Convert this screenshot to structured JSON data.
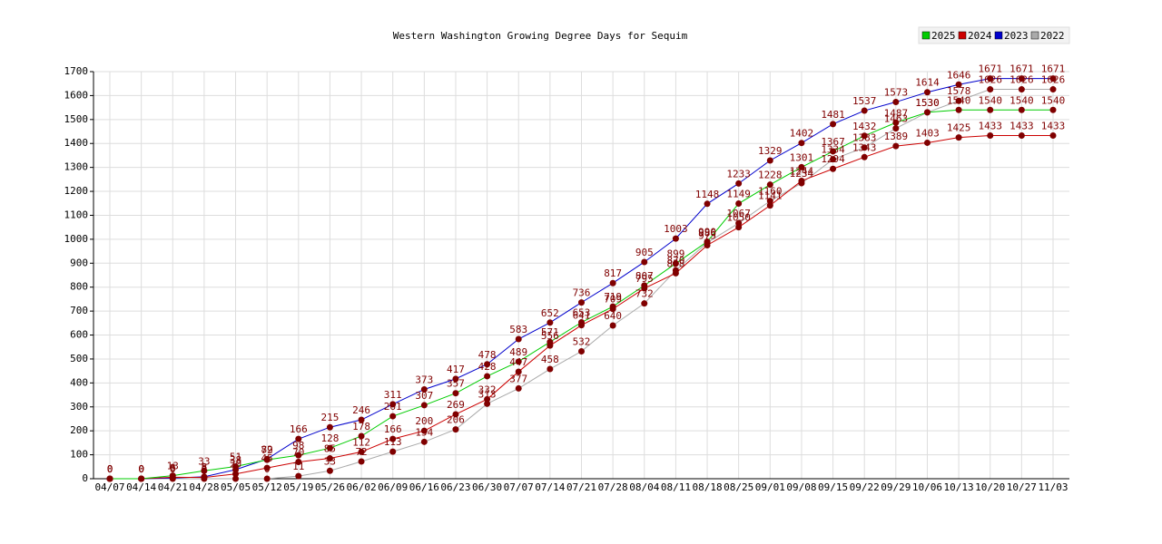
{
  "chart_data": {
    "type": "line",
    "title": "Western Washington Growing Degree Days for Sequim",
    "categories": [
      "04/07",
      "04/14",
      "04/21",
      "04/28",
      "05/05",
      "05/12",
      "05/19",
      "05/26",
      "06/02",
      "06/09",
      "06/16",
      "06/23",
      "06/30",
      "07/07",
      "07/14",
      "07/21",
      "07/28",
      "08/04",
      "08/11",
      "08/18",
      "08/25",
      "09/01",
      "09/08",
      "09/15",
      "09/22",
      "09/29",
      "10/06",
      "10/13",
      "10/20",
      "10/27",
      "11/03"
    ],
    "series": [
      {
        "name": "2025",
        "color": "#00cc00",
        "values": [
          0,
          0,
          13,
          33,
          51,
          79,
          98,
          128,
          178,
          261,
          307,
          357,
          428,
          489,
          571,
          653,
          719,
          807,
          899,
          990,
          1149,
          1228,
          1301,
          1367,
          1432,
          1487,
          1530,
          1540,
          1540,
          1540,
          1540
        ]
      },
      {
        "name": "2024",
        "color": "#cc0000",
        "values": [
          0,
          0,
          6,
          5,
          20,
          45,
          70,
          85,
          112,
          166,
          200,
          269,
          332,
          447,
          556,
          641,
          709,
          795,
          858,
          975,
          1050,
          1141,
          1244,
          1294,
          1343,
          1389,
          1403,
          1425,
          1433,
          1433,
          1433
        ]
      },
      {
        "name": "2023",
        "color": "#0000cc",
        "values": [
          0,
          0,
          3,
          8,
          38,
          82,
          166,
          215,
          246,
          311,
          373,
          417,
          478,
          583,
          652,
          736,
          817,
          905,
          1003,
          1148,
          1233,
          1329,
          1402,
          1481,
          1537,
          1573,
          1614,
          1646,
          1671,
          1671,
          1671
        ]
      },
      {
        "name": "2022",
        "color": "#aaaaaa",
        "values": [
          0,
          0,
          0,
          0,
          0,
          0,
          11,
          33,
          72,
          113,
          154,
          206,
          313,
          377,
          458,
          532,
          640,
          732,
          870,
          986,
          1067,
          1160,
          1234,
          1334,
          1383,
          1463,
          1530,
          1578,
          1626,
          1626,
          1626
        ]
      }
    ],
    "ylim": [
      0,
      1700
    ],
    "yticks": [
      0,
      100,
      200,
      300,
      400,
      500,
      600,
      700,
      800,
      900,
      1000,
      1100,
      1200,
      1300,
      1400,
      1500,
      1600,
      1700
    ],
    "grid": true,
    "legend": "top-right",
    "marker_color": "#800000"
  }
}
